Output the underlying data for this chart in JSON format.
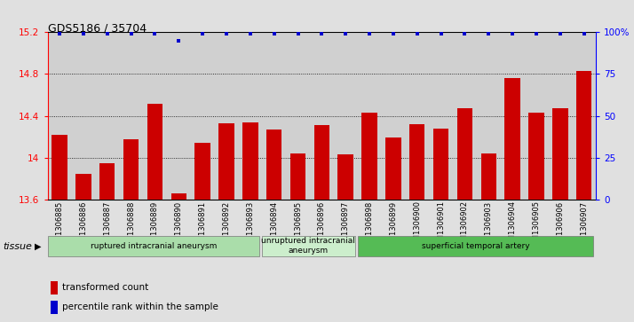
{
  "title": "GDS5186 / 35704",
  "categories": [
    "GSM1306885",
    "GSM1306886",
    "GSM1306887",
    "GSM1306888",
    "GSM1306889",
    "GSM1306890",
    "GSM1306891",
    "GSM1306892",
    "GSM1306893",
    "GSM1306894",
    "GSM1306895",
    "GSM1306896",
    "GSM1306897",
    "GSM1306898",
    "GSM1306899",
    "GSM1306900",
    "GSM1306901",
    "GSM1306902",
    "GSM1306903",
    "GSM1306904",
    "GSM1306905",
    "GSM1306906",
    "GSM1306907"
  ],
  "bar_values": [
    14.22,
    13.85,
    13.95,
    14.18,
    14.52,
    13.66,
    14.14,
    14.33,
    14.34,
    14.27,
    14.04,
    14.31,
    14.03,
    14.43,
    14.19,
    14.32,
    14.28,
    14.47,
    14.04,
    14.76,
    14.43,
    14.47,
    14.83
  ],
  "percentile_values": [
    99,
    99,
    99,
    99,
    99,
    95,
    99,
    99,
    99,
    99,
    99,
    99,
    99,
    99,
    99,
    99,
    99,
    99,
    99,
    99,
    99,
    99,
    99
  ],
  "bar_color": "#cc0000",
  "percentile_color": "#0000cc",
  "ylim_left": [
    13.6,
    15.2
  ],
  "ylim_right": [
    0,
    100
  ],
  "yticks_left": [
    13.6,
    14.0,
    14.4,
    14.8,
    15.2
  ],
  "yticks_right": [
    0,
    25,
    50,
    75,
    100
  ],
  "ytick_labels_left": [
    "13.6",
    "14",
    "14.4",
    "14.8",
    "15.2"
  ],
  "ytick_labels_right": [
    "0",
    "25",
    "50",
    "75",
    "100%"
  ],
  "grid_values": [
    14.0,
    14.4,
    14.8
  ],
  "tissue_label": "tissue",
  "groups": [
    {
      "label": "ruptured intracranial aneurysm",
      "start": 0,
      "end": 8,
      "color": "#aaddaa"
    },
    {
      "label": "unruptured intracranial\naneurysm",
      "start": 9,
      "end": 12,
      "color": "#cceecc"
    },
    {
      "label": "superficial temporal artery",
      "start": 13,
      "end": 22,
      "color": "#55bb55"
    }
  ],
  "legend_items": [
    {
      "label": "transformed count",
      "color": "#cc0000"
    },
    {
      "label": "percentile rank within the sample",
      "color": "#0000cc"
    }
  ],
  "fig_bg_color": "#e0e0e0",
  "plot_bg_color": "#d0d0d0"
}
